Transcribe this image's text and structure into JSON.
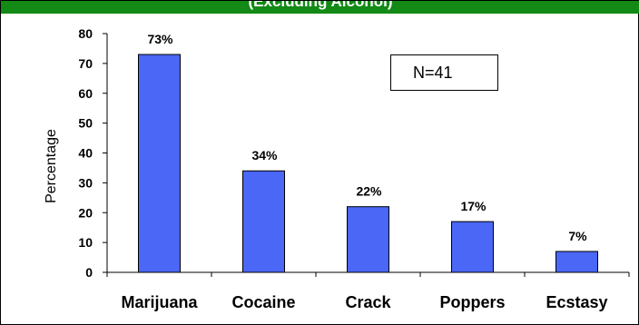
{
  "header": {
    "title": "(Excluding Alcohol)"
  },
  "annotation": {
    "text": "N=41"
  },
  "colors": {
    "bar": "#4a67f5",
    "header_band": "#138a16"
  },
  "chart_data": {
    "type": "bar",
    "title": "",
    "xlabel": "",
    "ylabel": "Percentage",
    "ylim": [
      0,
      80
    ],
    "yticks": [
      0,
      10,
      20,
      30,
      40,
      50,
      60,
      70,
      80
    ],
    "categories": [
      "Marijuana",
      "Cocaine",
      "Crack",
      "Poppers",
      "Ecstasy"
    ],
    "values": [
      73,
      34,
      22,
      17,
      7
    ],
    "data_labels": [
      "73%",
      "34%",
      "22%",
      "17%",
      "7%"
    ],
    "grid": false,
    "legend": "none"
  }
}
